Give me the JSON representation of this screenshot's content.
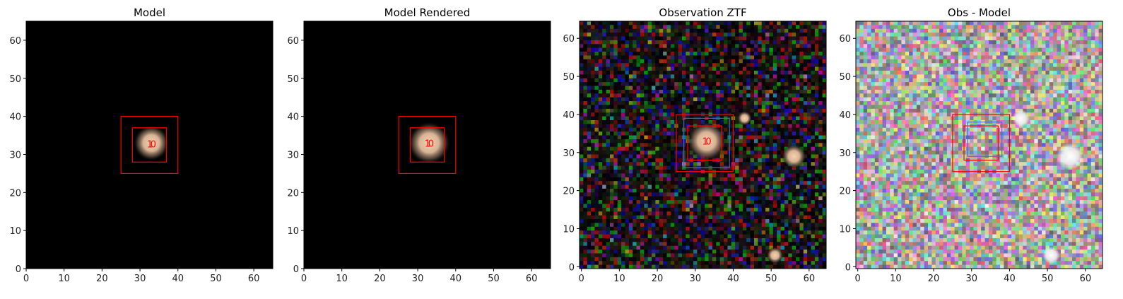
{
  "chart_data": [
    {
      "type": "image",
      "title": "Model",
      "xlim": [
        0,
        65
      ],
      "ylim": [
        0,
        65
      ],
      "xticks": [
        0,
        10,
        20,
        30,
        40,
        50,
        60
      ],
      "yticks": [
        0,
        10,
        20,
        30,
        40,
        50,
        60
      ],
      "background": "dark",
      "noise": false,
      "sources": [
        {
          "x": 33,
          "y": 33,
          "r": 3.2
        }
      ],
      "boxes": [
        {
          "x": [
            25,
            40
          ],
          "y": [
            25,
            40
          ],
          "color": "#ff0000"
        },
        {
          "x": [
            28,
            37
          ],
          "y": [
            28,
            37
          ],
          "color": "#ff0000"
        }
      ],
      "labels": [
        {
          "text": "1",
          "x": 32.6,
          "y": 32.8
        },
        {
          "text": "0",
          "x": 33.5,
          "y": 32.8
        }
      ]
    },
    {
      "type": "image",
      "title": "Model Rendered",
      "xlim": [
        0,
        65
      ],
      "ylim": [
        0,
        65
      ],
      "xticks": [
        0,
        10,
        20,
        30,
        40,
        50,
        60
      ],
      "yticks": [
        0,
        10,
        20,
        30,
        40,
        50,
        60
      ],
      "background": "dark",
      "noise": false,
      "sources": [
        {
          "x": 33,
          "y": 33,
          "r": 3.8
        }
      ],
      "boxes": [
        {
          "x": [
            25,
            40
          ],
          "y": [
            25,
            40
          ],
          "color": "#ff0000"
        },
        {
          "x": [
            28,
            37
          ],
          "y": [
            28,
            37
          ],
          "color": "#ff0000"
        }
      ],
      "labels": [
        {
          "text": "1",
          "x": 32.6,
          "y": 33
        },
        {
          "text": "0",
          "x": 33.5,
          "y": 33
        }
      ]
    },
    {
      "type": "image",
      "title": "Observation ZTF",
      "xlim": [
        -0.5,
        64.5
      ],
      "ylim": [
        -0.5,
        64.5
      ],
      "xticks": [
        0,
        10,
        20,
        30,
        40,
        50,
        60
      ],
      "yticks": [
        0,
        10,
        20,
        30,
        40,
        50,
        60
      ],
      "background": "dark",
      "noise": true,
      "sources": [
        {
          "x": 33,
          "y": 33,
          "r": 3.5
        },
        {
          "x": 56,
          "y": 29,
          "r": 2.2
        },
        {
          "x": 51,
          "y": 3,
          "r": 1.5
        },
        {
          "x": 43,
          "y": 39,
          "r": 1.3
        }
      ],
      "boxes": [
        {
          "x": [
            25,
            40
          ],
          "y": [
            25,
            40
          ],
          "color": "#ff0000"
        },
        {
          "x": [
            28,
            37
          ],
          "y": [
            28,
            37
          ],
          "color": "#ff0000"
        },
        {
          "x": [
            27,
            39
          ],
          "y": [
            26,
            39
          ],
          "color": "#4a6ac8"
        }
      ],
      "labels": [
        {
          "text": "1",
          "x": 32.6,
          "y": 33
        },
        {
          "text": "0",
          "x": 33.5,
          "y": 33
        }
      ]
    },
    {
      "type": "image",
      "title": "Obs - Model",
      "xlim": [
        -0.5,
        64.5
      ],
      "ylim": [
        -0.5,
        64.5
      ],
      "xticks": [
        0,
        10,
        20,
        30,
        40,
        50,
        60
      ],
      "yticks": [
        0,
        10,
        20,
        30,
        40,
        50,
        60
      ],
      "background": "bright",
      "noise": true,
      "sources": [
        {
          "x": 56,
          "y": 29,
          "r": 2.4
        },
        {
          "x": 51,
          "y": 3,
          "r": 1.5
        },
        {
          "x": 43,
          "y": 39,
          "r": 1.5
        }
      ],
      "boxes": [
        {
          "x": [
            25,
            40
          ],
          "y": [
            25,
            40
          ],
          "color": "#ff0000"
        },
        {
          "x": [
            28,
            37
          ],
          "y": [
            28,
            37
          ],
          "color": "#ff0000"
        },
        {
          "x": [
            29,
            38
          ],
          "y": [
            29,
            38
          ],
          "color": "#4a6ac8"
        }
      ],
      "labels": []
    }
  ]
}
